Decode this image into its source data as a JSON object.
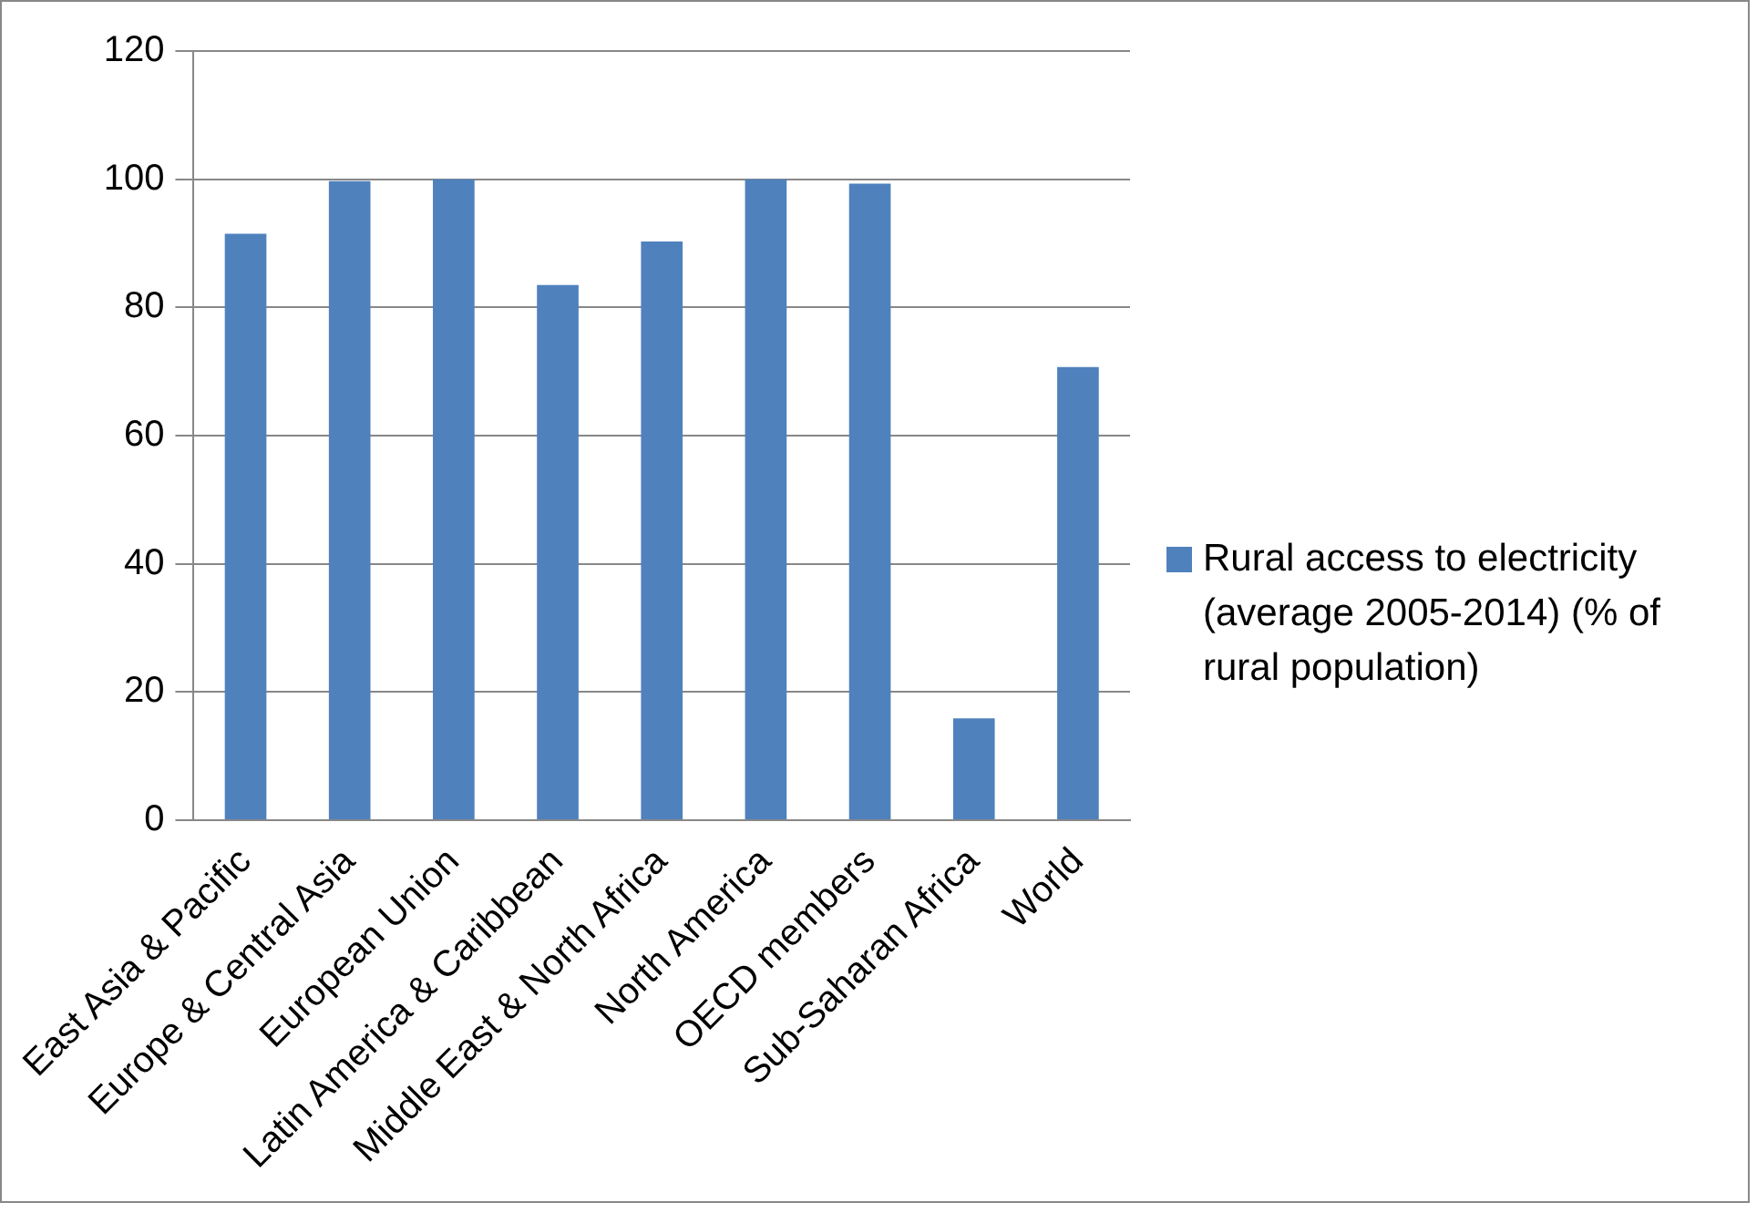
{
  "chart_data": {
    "type": "bar",
    "categories": [
      "East Asia & Pacific",
      "Europe & Central Asia",
      "European Union",
      "Latin America & Caribbean",
      "Middle East & North Africa",
      "North America",
      "OECD members",
      "Sub-Saharan Africa",
      "World"
    ],
    "series": [
      {
        "name": "Rural access to electricity (average 2005-2014) (% of rural population)",
        "color": "#4f81bd",
        "values": [
          91.5,
          99.7,
          100,
          83.5,
          90.3,
          100,
          99.3,
          15.9,
          70.7
        ]
      }
    ],
    "ylim": [
      0,
      120
    ],
    "yticks": [
      0,
      20,
      40,
      60,
      80,
      100,
      120
    ],
    "grid": "y",
    "legend": "right"
  }
}
